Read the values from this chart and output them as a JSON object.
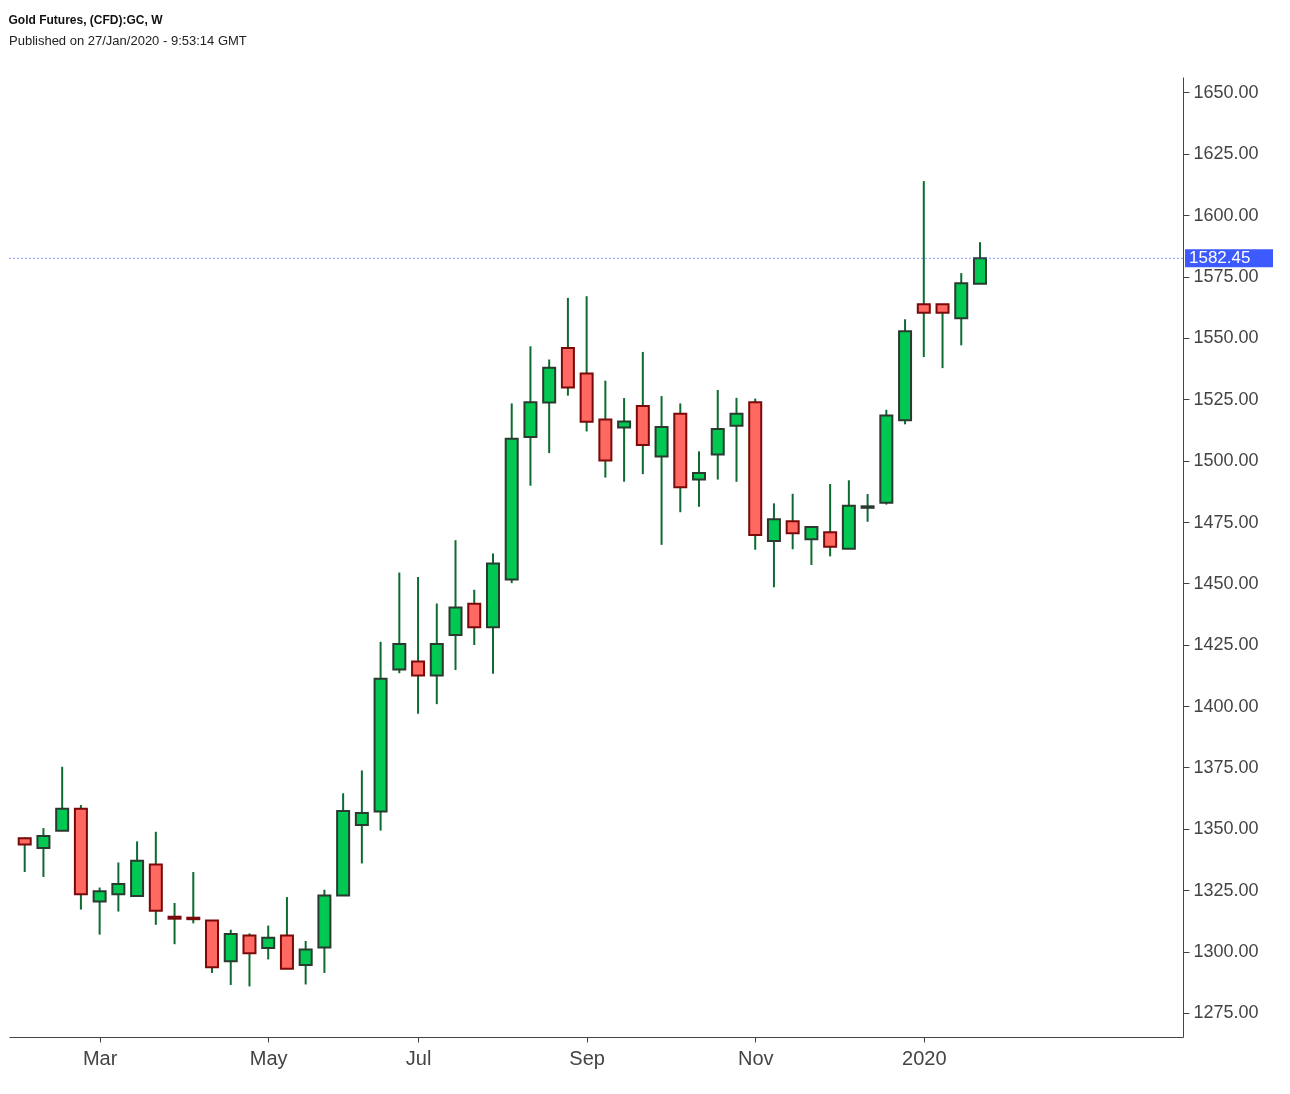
{
  "chart_data": {
    "type": "candlestick",
    "title": "Gold Futures, (CFD):GC, W",
    "annotations": [
      "Published on 27/Jan/2020 - 9:53:14 GMT"
    ],
    "x": [
      "2019-02-04",
      "2019-02-11",
      "2019-02-18",
      "2019-02-25",
      "2019-03-04",
      "2019-03-11",
      "2019-03-18",
      "2019-03-25",
      "2019-04-01",
      "2019-04-08",
      "2019-04-15",
      "2019-04-22",
      "2019-04-29",
      "2019-05-06",
      "2019-05-13",
      "2019-05-20",
      "2019-05-27",
      "2019-06-03",
      "2019-06-10",
      "2019-06-17",
      "2019-06-24",
      "2019-07-01",
      "2019-07-08",
      "2019-07-15",
      "2019-07-22",
      "2019-07-29",
      "2019-08-05",
      "2019-08-12",
      "2019-08-19",
      "2019-08-26",
      "2019-09-02",
      "2019-09-09",
      "2019-09-16",
      "2019-09-23",
      "2019-09-30",
      "2019-10-07",
      "2019-10-14",
      "2019-10-21",
      "2019-10-28",
      "2019-11-04",
      "2019-11-11",
      "2019-11-18",
      "2019-11-25",
      "2019-12-02",
      "2019-12-09",
      "2019-12-16",
      "2019-12-23",
      "2019-12-30",
      "2020-01-06",
      "2020-01-13",
      "2020-01-20",
      "2020-01-27"
    ],
    "ohlc": [
      [
        1346.2,
        1346.5,
        1332.4,
        1343.6
      ],
      [
        1342.2,
        1350.3,
        1330.4,
        1347.1
      ],
      [
        1349.2,
        1375.3,
        1349.2,
        1358.2
      ],
      [
        1358.2,
        1359.7,
        1317.1,
        1323.4
      ],
      [
        1320.4,
        1326.1,
        1306.9,
        1324.6
      ],
      [
        1323.4,
        1336.3,
        1316.3,
        1327.5
      ],
      [
        1322.6,
        1344.9,
        1322.6,
        1337.0
      ],
      [
        1335.5,
        1348.8,
        1310.9,
        1316.6
      ],
      [
        1314.2,
        1319.8,
        1303.0,
        1313.4
      ],
      [
        1313.8,
        1332.4,
        1311.5,
        1313.2
      ],
      [
        1312.7,
        1312.7,
        1291.3,
        1293.6
      ],
      [
        1296.1,
        1308.9,
        1286.4,
        1307.2
      ],
      [
        1306.6,
        1307.4,
        1285.8,
        1299.3
      ],
      [
        1301.5,
        1310.6,
        1296.8,
        1305.6
      ],
      [
        1306.6,
        1322.2,
        1293.0,
        1293.0
      ],
      [
        1294.5,
        1304.3,
        1286.6,
        1300.8
      ],
      [
        1301.7,
        1325.2,
        1291.3,
        1322.8
      ],
      [
        1322.8,
        1364.5,
        1322.8,
        1357.3
      ],
      [
        1351.6,
        1373.8,
        1335.9,
        1356.5
      ],
      [
        1357.1,
        1426.2,
        1349.3,
        1411.2
      ],
      [
        1414.9,
        1454.4,
        1413.4,
        1425.3
      ],
      [
        1418.2,
        1452.6,
        1396.9,
        1412.5
      ],
      [
        1412.5,
        1441.8,
        1400.8,
        1425.3
      ],
      [
        1429.0,
        1467.6,
        1414.7,
        1440.2
      ],
      [
        1441.7,
        1447.4,
        1424.9,
        1432.1
      ],
      [
        1432.1,
        1462.2,
        1413.2,
        1458.1
      ],
      [
        1451.6,
        1523.3,
        1450.1,
        1508.9
      ],
      [
        1509.6,
        1546.6,
        1489.8,
        1523.8
      ],
      [
        1523.7,
        1541.2,
        1503.1,
        1537.9
      ],
      [
        1545.9,
        1566.3,
        1526.5,
        1529.8
      ],
      [
        1535.5,
        1567.0,
        1511.9,
        1515.8
      ],
      [
        1516.8,
        1532.6,
        1493.1,
        1500.1
      ],
      [
        1513.5,
        1525.5,
        1491.4,
        1516.0
      ],
      [
        1522.3,
        1544.3,
        1494.5,
        1506.4
      ],
      [
        1501.7,
        1526.3,
        1465.7,
        1513.7
      ],
      [
        1519.1,
        1523.3,
        1479.0,
        1489.2
      ],
      [
        1492.3,
        1503.8,
        1481.2,
        1495.0
      ],
      [
        1502.5,
        1528.8,
        1492.3,
        1512.9
      ],
      [
        1514.2,
        1525.6,
        1491.4,
        1519.1
      ],
      [
        1523.8,
        1525.3,
        1463.7,
        1469.7
      ],
      [
        1467.3,
        1482.6,
        1448.4,
        1476.1
      ],
      [
        1475.3,
        1486.5,
        1463.9,
        1470.4
      ],
      [
        1468.0,
        1473.0,
        1457.5,
        1473.0
      ],
      [
        1470.8,
        1490.5,
        1461.0,
        1464.9
      ],
      [
        1464.1,
        1492.0,
        1464.1,
        1481.6
      ],
      [
        1480.8,
        1486.4,
        1475.1,
        1481.4
      ],
      [
        1482.9,
        1520.7,
        1482.1,
        1518.4
      ],
      [
        1516.5,
        1557.6,
        1514.8,
        1552.7
      ],
      [
        1563.7,
        1613.9,
        1542.2,
        1560.3
      ],
      [
        1563.7,
        1563.7,
        1537.7,
        1560.3
      ],
      [
        1558.0,
        1576.4,
        1547.0,
        1572.3
      ],
      [
        1572.1,
        1589.0,
        1572.1,
        1582.45
      ]
    ],
    "colors": [
      "#ff6961",
      "#00c853",
      "#00c853",
      "#ff6961",
      "#00c853",
      "#00c853",
      "#00c853",
      "#ff6961",
      "#ff6961",
      "#ff6961",
      "#ff6961",
      "#00c853",
      "#ff6961",
      "#00c853",
      "#ff6961",
      "#00c853",
      "#00c853",
      "#00c853",
      "#00c853",
      "#00c853",
      "#00c853",
      "#ff6961",
      "#00c853",
      "#00c853",
      "#ff6961",
      "#00c853",
      "#00c853",
      "#00c853",
      "#00c853",
      "#ff6961",
      "#ff6961",
      "#ff6961",
      "#00c853",
      "#ff6961",
      "#00c853",
      "#ff6961",
      "#00c853",
      "#00c853",
      "#00c853",
      "#ff6961",
      "#00c853",
      "#ff6961",
      "#00c853",
      "#ff6961",
      "#00c853",
      "#00c853",
      "#00c853",
      "#00c853",
      "#ff6961",
      "#ff6961",
      "#00c853",
      "#00c853"
    ],
    "xlim": [
      "2019-01-31",
      "2020-04-10"
    ],
    "xticks": [
      {
        "value": "2019-03-04",
        "label": "Mar"
      },
      {
        "value": "2019-05-06",
        "label": "May"
      },
      {
        "value": "2019-07-01",
        "label": "Jul"
      },
      {
        "value": "2019-09-02",
        "label": "Sep"
      },
      {
        "value": "2019-11-04",
        "label": "Nov"
      },
      {
        "value": "2020-01-06",
        "label": "2020"
      }
    ],
    "ylim": [
      1265.2,
      1656.3
    ],
    "yticks": [
      {
        "value": 1275,
        "label": "1275.00"
      },
      {
        "value": 1300,
        "label": "1300.00"
      },
      {
        "value": 1325,
        "label": "1325.00"
      },
      {
        "value": 1350,
        "label": "1350.00"
      },
      {
        "value": 1375,
        "label": "1375.00"
      },
      {
        "value": 1400,
        "label": "1400.00"
      },
      {
        "value": 1425,
        "label": "1425.00"
      },
      {
        "value": 1450,
        "label": "1450.00"
      },
      {
        "value": 1475,
        "label": "1475.00"
      },
      {
        "value": 1500,
        "label": "1500.00"
      },
      {
        "value": 1525,
        "label": "1525.00"
      },
      {
        "value": 1550,
        "label": "1550.00"
      },
      {
        "value": 1575,
        "label": "1575.00"
      },
      {
        "value": 1600,
        "label": "1600.00"
      },
      {
        "value": 1625,
        "label": "1625.00"
      },
      {
        "value": 1650,
        "label": "1650.00"
      }
    ],
    "ref_lines": [
      {
        "axis": "y",
        "value": 1582.45,
        "label": "1582.45",
        "color": "#3d5afe",
        "line_style": "dotted"
      }
    ],
    "grid": false
  }
}
